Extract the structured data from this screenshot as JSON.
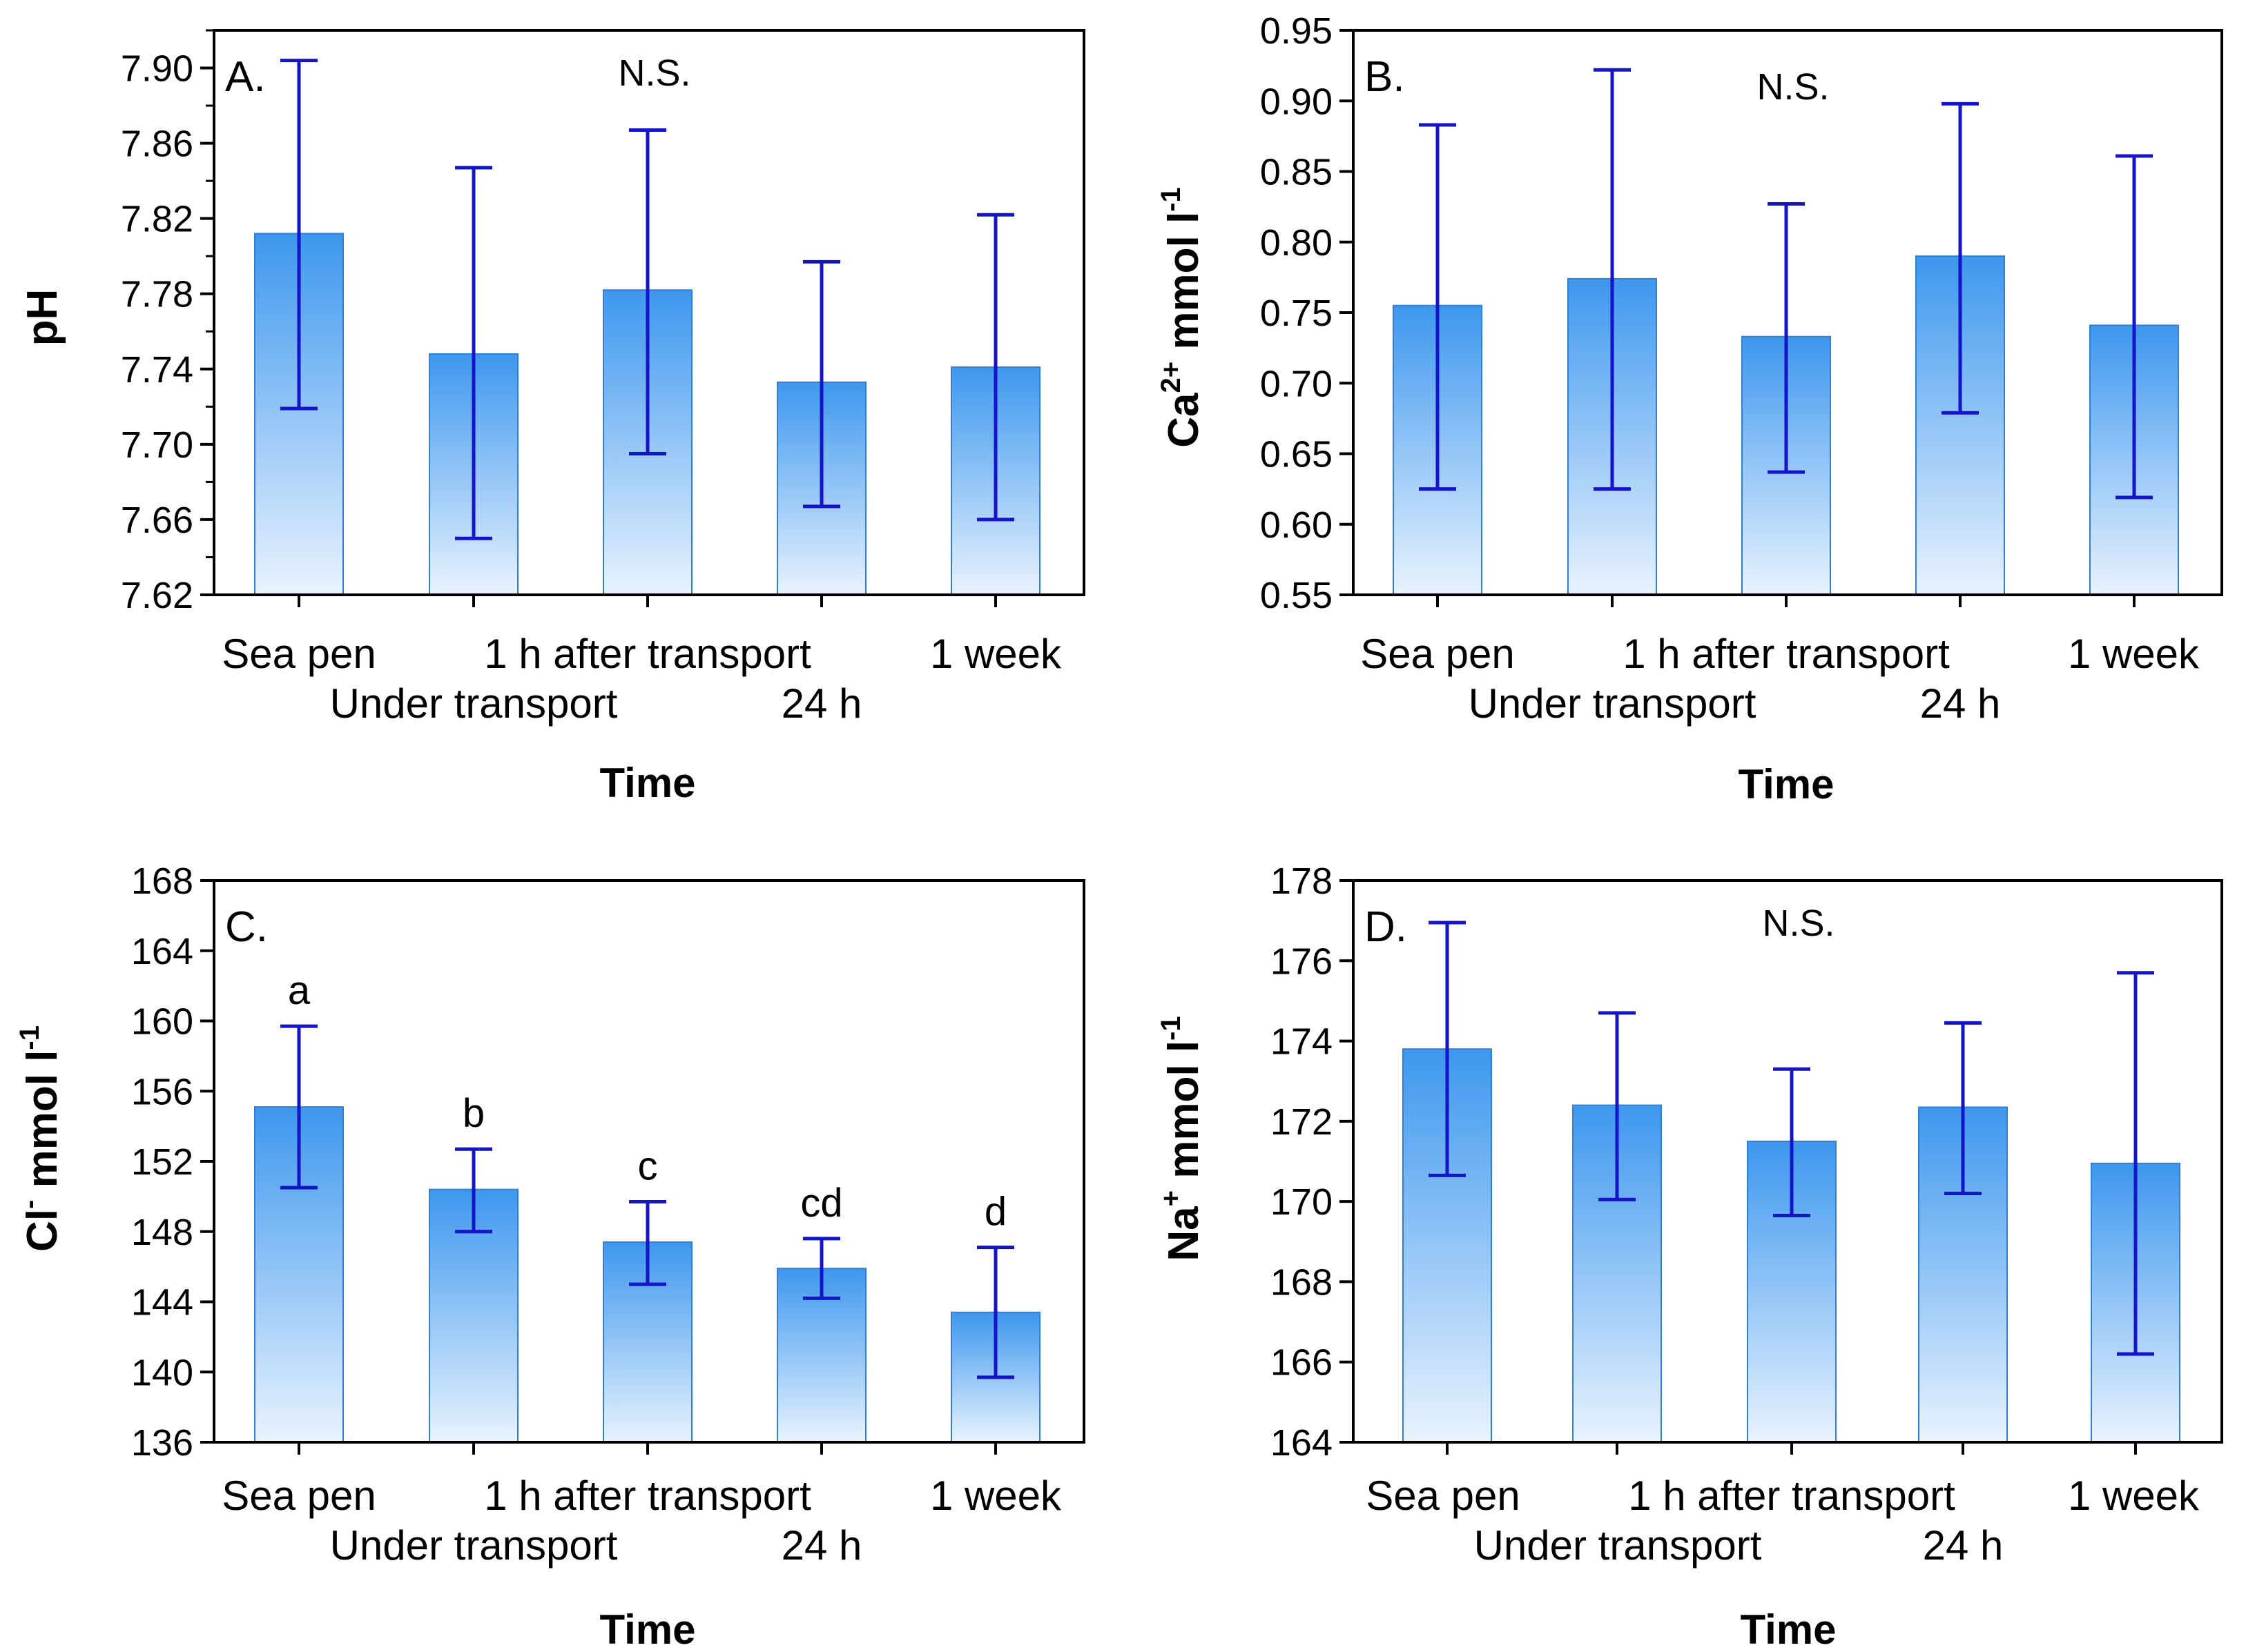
{
  "colors": {
    "bar_top": "#3d97ee",
    "bar_bottom": "#e9f3fe",
    "bar_edge": "#2f7fd6",
    "error_bar": "#1414c8",
    "axis": "#000000"
  },
  "category_labels": {
    "row1": [
      "Sea pen",
      "1 h after transport",
      "1 week"
    ],
    "row2": [
      "Under transport",
      "24 h"
    ]
  },
  "chart_data": [
    {
      "type": "bar",
      "panel": "A.",
      "annotation": "N.S.",
      "categories": [
        "Sea pen",
        "Under transport",
        "1 h after transport",
        "24 h",
        "1 week"
      ],
      "values": [
        7.812,
        7.748,
        7.782,
        7.733,
        7.741
      ],
      "error_low": [
        7.719,
        7.65,
        7.695,
        7.667,
        7.66
      ],
      "error_high": [
        7.904,
        7.847,
        7.867,
        7.797,
        7.822
      ],
      "significance": [],
      "ylabel": "pH",
      "ylabel_sup": "",
      "ylabel_rest": "",
      "xlabel": "Time",
      "ylim": [
        7.62,
        7.92
      ],
      "ytick_labels": [
        "7.62",
        "7.66",
        "7.70",
        "7.74",
        "7.78",
        "7.82",
        "7.86",
        "7.90"
      ],
      "ytick_values": [
        7.62,
        7.66,
        7.7,
        7.74,
        7.78,
        7.82,
        7.86,
        7.9
      ],
      "minor_ticks": true
    },
    {
      "type": "bar",
      "panel": "B.",
      "annotation": "N.S.",
      "categories": [
        "Sea pen",
        "Under transport",
        "1 h after transport",
        "24 h",
        "1 week"
      ],
      "values": [
        0.755,
        0.774,
        0.733,
        0.79,
        0.741
      ],
      "error_low": [
        0.625,
        0.625,
        0.637,
        0.679,
        0.619
      ],
      "error_high": [
        0.883,
        0.922,
        0.827,
        0.898,
        0.861
      ],
      "significance": [],
      "ylabel": "Ca",
      "ylabel_sup": "2+",
      "ylabel_rest": " mmol l",
      "ylabel_sup2": "-1",
      "xlabel": "Time",
      "ylim": [
        0.55,
        0.95
      ],
      "ytick_labels": [
        "0.55",
        "0.60",
        "0.65",
        "0.70",
        "0.75",
        "0.80",
        "0.85",
        "0.90",
        "0.95"
      ],
      "ytick_values": [
        0.55,
        0.6,
        0.65,
        0.7,
        0.75,
        0.8,
        0.85,
        0.9,
        0.95
      ],
      "minor_ticks": false
    },
    {
      "type": "bar",
      "panel": "C.",
      "annotation": "",
      "categories": [
        "Sea pen",
        "Under transport",
        "1 h after transport",
        "24 h",
        "1 week"
      ],
      "values": [
        155.1,
        150.4,
        147.4,
        145.9,
        143.4
      ],
      "error_low": [
        150.5,
        148.0,
        145.0,
        144.2,
        139.7
      ],
      "error_high": [
        159.7,
        152.7,
        149.7,
        147.6,
        147.1
      ],
      "significance": [
        "a",
        "b",
        "c",
        "cd",
        "d"
      ],
      "ylabel": "Cl",
      "ylabel_sup": "-",
      "ylabel_rest": " mmol l",
      "ylabel_sup2": "-1",
      "xlabel": "Time",
      "ylim": [
        136,
        168
      ],
      "ytick_labels": [
        "136",
        "140",
        "144",
        "148",
        "152",
        "156",
        "160",
        "164",
        "168"
      ],
      "ytick_values": [
        136,
        140,
        144,
        148,
        152,
        156,
        160,
        164,
        168
      ],
      "minor_ticks": false
    },
    {
      "type": "bar",
      "panel": "D.",
      "annotation": "N.S.",
      "categories": [
        "Sea pen",
        "Under transport",
        "1 h after transport",
        "24 h",
        "1 week"
      ],
      "values": [
        173.8,
        172.4,
        171.5,
        172.35,
        170.95
      ],
      "error_low": [
        170.65,
        170.05,
        169.65,
        170.2,
        166.2
      ],
      "error_high": [
        176.95,
        174.7,
        173.3,
        174.45,
        175.7
      ],
      "significance": [],
      "ylabel": "Na",
      "ylabel_sup": "+",
      "ylabel_rest": " mmol l",
      "ylabel_sup2": "-1",
      "xlabel": "Time",
      "ylim": [
        164,
        178
      ],
      "ytick_labels": [
        "164",
        "166",
        "168",
        "170",
        "172",
        "174",
        "176",
        "178"
      ],
      "ytick_values": [
        164,
        166,
        168,
        170,
        172,
        174,
        176,
        178
      ],
      "minor_ticks": false
    }
  ]
}
